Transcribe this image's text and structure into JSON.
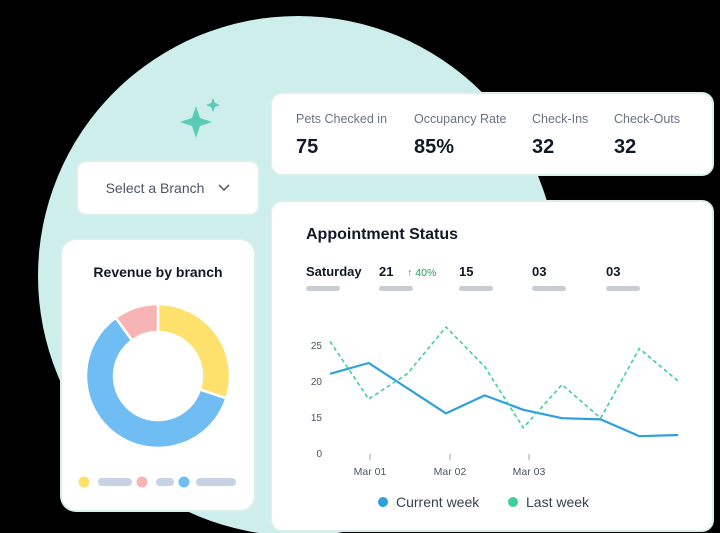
{
  "stats": [
    {
      "label": "Pets Checked in",
      "value": "75"
    },
    {
      "label": "Occupancy Rate",
      "value": "85%"
    },
    {
      "label": "Check-Ins",
      "value": "32"
    },
    {
      "label": "Check-Outs",
      "value": "32"
    }
  ],
  "branch_select": {
    "label": "Select a Branch"
  },
  "revenue": {
    "title": "Revenue by branch",
    "slices": [
      {
        "value": 30,
        "color": "#fde16c"
      },
      {
        "value": 60,
        "color": "#6fbdf2"
      },
      {
        "value": 10,
        "color": "#f8b4b4"
      }
    ],
    "legend_colors": [
      "#fde16c",
      "#f8b4b4",
      "#6fbdf2"
    ]
  },
  "appointment": {
    "title": "Appointment Status",
    "tabs": [
      {
        "label": "Saturday",
        "badge": ""
      },
      {
        "label": "21",
        "badge": "↑ 40%"
      },
      {
        "label": "15",
        "badge": ""
      },
      {
        "label": "03",
        "badge": ""
      },
      {
        "label": "03",
        "badge": ""
      }
    ]
  },
  "chart_data": {
    "type": "line",
    "y_ticks": [
      "0",
      "15",
      "20",
      "25"
    ],
    "x_labels": [
      "Mar 01",
      "Mar 02",
      "Mar 03"
    ],
    "series": [
      {
        "name": "Current week",
        "color": "#2f9fde",
        "style": "solid",
        "values": [
          21,
          22.5,
          19,
          15.5,
          18,
          16,
          14.5,
          14,
          7,
          7.5
        ]
      },
      {
        "name": "Last week",
        "color": "#3fcf9b",
        "style": "dashed",
        "values": [
          25.5,
          17.5,
          21,
          27.5,
          22,
          10.5,
          19.5,
          14.5,
          24.5,
          20
        ]
      }
    ]
  }
}
